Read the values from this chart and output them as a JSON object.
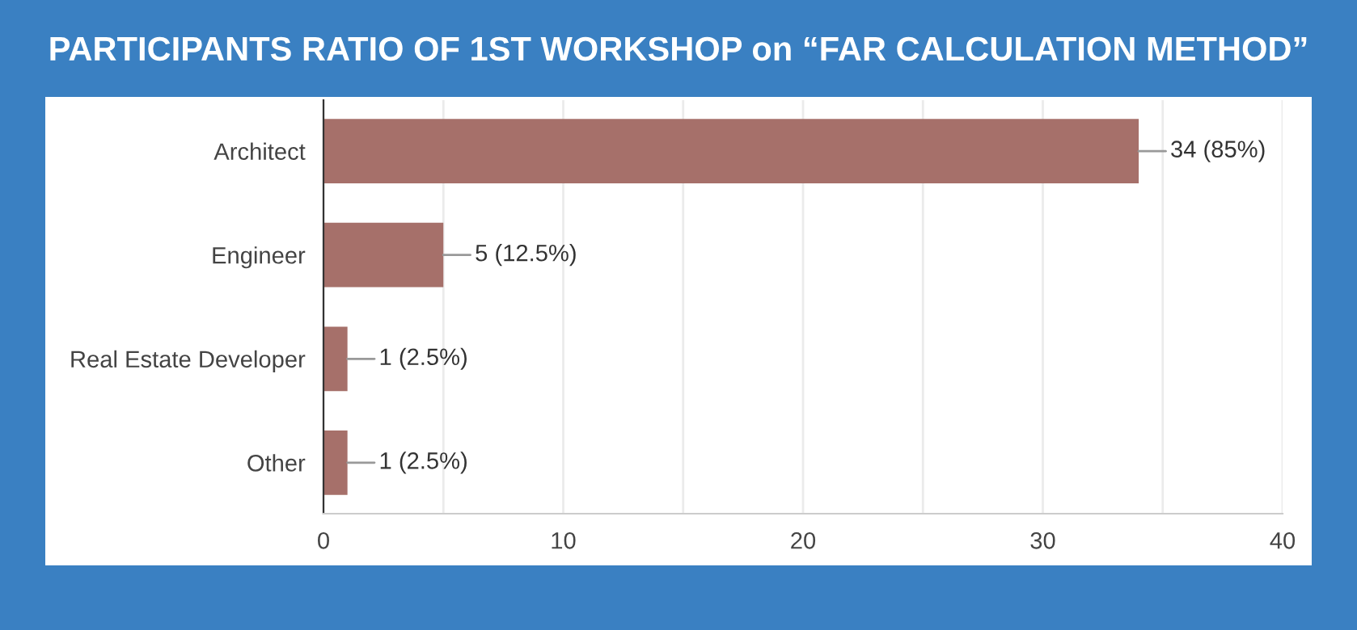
{
  "chart_data": {
    "type": "bar",
    "orientation": "horizontal",
    "title": "PARTICIPANTS RATIO OF 1ST WORKSHOP on “FAR CALCULATION METHOD”",
    "categories": [
      "Architect",
      "Engineer",
      "Real Estate Developer",
      "Other"
    ],
    "values": [
      34,
      5,
      1,
      1
    ],
    "color": "#a6706a",
    "value_labels": [
      "34 (85%)",
      "5 (12.5%)",
      "1 (2.5%)",
      "1 (2.5%)"
    ],
    "xlim": [
      0,
      40
    ],
    "xticks": [
      0,
      {
        "value": 5,
        "label": null
      },
      10,
      {
        "value": 15,
        "label": null
      },
      20,
      {
        "value": 25,
        "label": null
      },
      30,
      {
        "value": 35,
        "label": null
      },
      40
    ],
    "grid": "x"
  }
}
